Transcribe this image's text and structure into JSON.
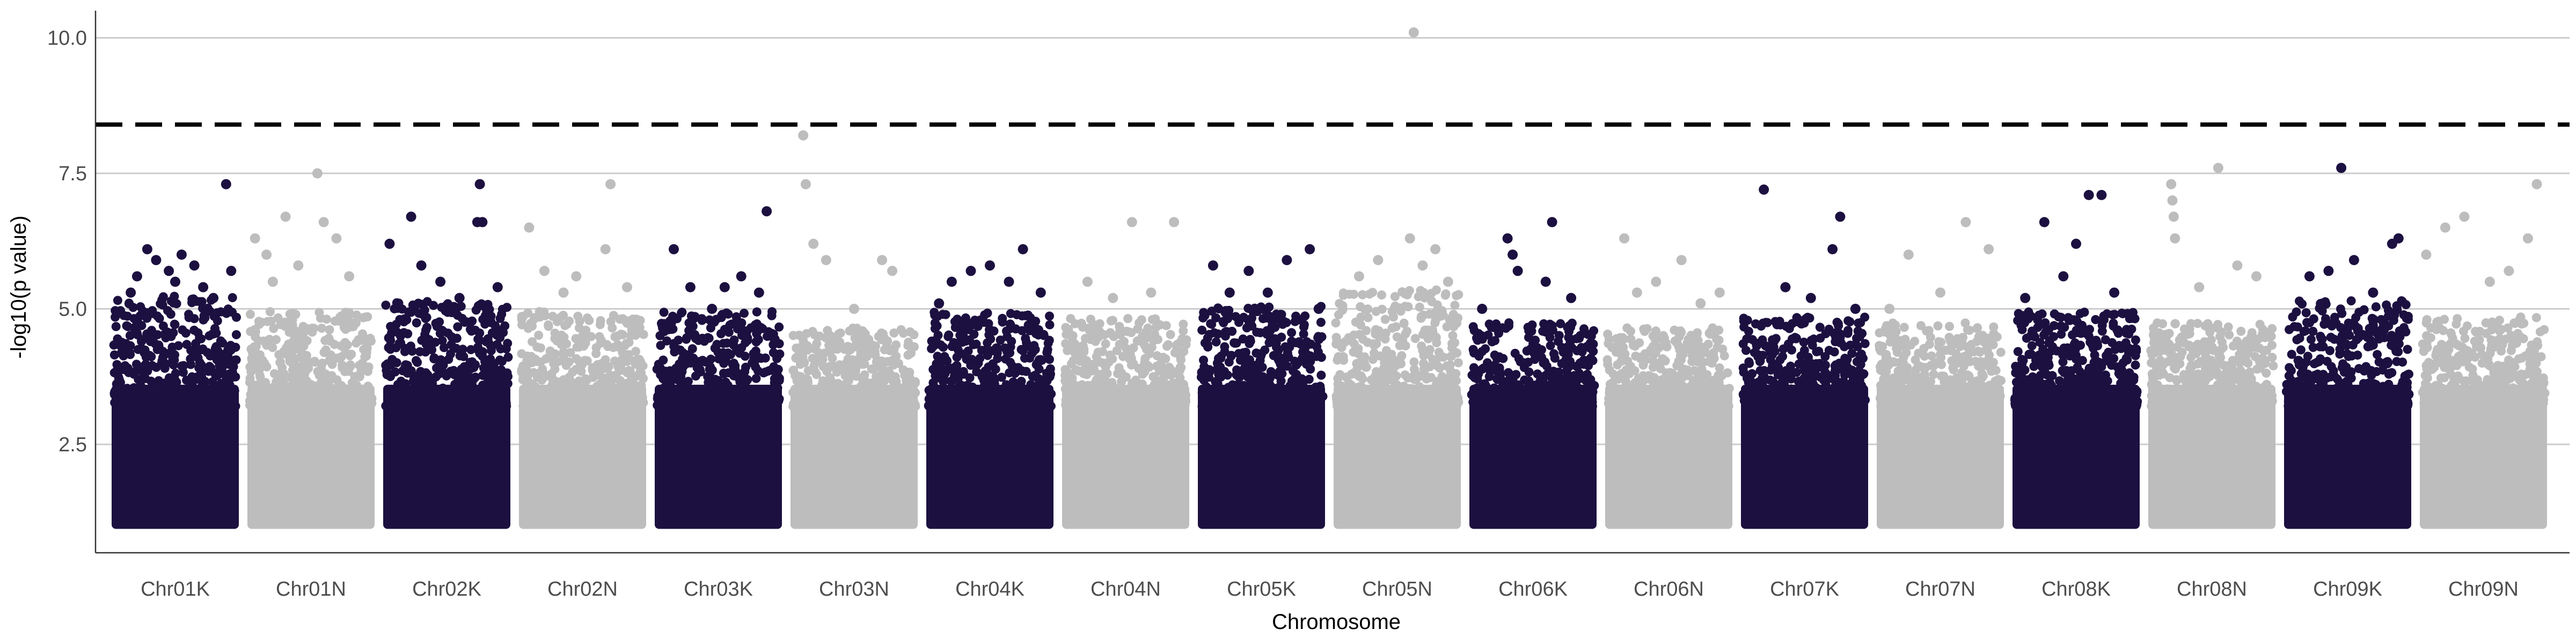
{
  "chart_data": {
    "type": "scatter",
    "title": "",
    "xlabel": "Chromosome",
    "ylabel": "-log10(p value)",
    "categories": [
      "Chr01K",
      "Chr01N",
      "Chr02K",
      "Chr02N",
      "Chr03K",
      "Chr03N",
      "Chr04K",
      "Chr04N",
      "Chr05K",
      "Chr05N",
      "Chr06K",
      "Chr06N",
      "Chr07K",
      "Chr07N",
      "Chr08K",
      "Chr08N",
      "Chr09K",
      "Chr09N"
    ],
    "ylim": [
      0.5,
      10.5
    ],
    "y_ticks": [
      2.5,
      5.0,
      7.5,
      10.0
    ],
    "y_tick_labels": [
      "2.5",
      "5.0",
      "7.5",
      "10.0"
    ],
    "threshold": 8.4,
    "grid": "horizontal-major",
    "colors": {
      "dark": "#1c1040",
      "light": "#bdbdbd",
      "threshold": "#000000",
      "grid": "#cccccc"
    },
    "series": [
      {
        "chromosome": "Chr01K",
        "color": "dark",
        "typical_max": 4.9,
        "top_points": [
          [
            0.2,
            5.6
          ],
          [
            0.28,
            6.1
          ],
          [
            0.35,
            5.9
          ],
          [
            0.45,
            5.7
          ],
          [
            0.55,
            6.0
          ],
          [
            0.65,
            5.8
          ],
          [
            0.72,
            5.4
          ],
          [
            0.9,
            7.3
          ],
          [
            0.94,
            5.7
          ],
          [
            0.15,
            5.3
          ],
          [
            0.5,
            5.5
          ],
          [
            0.8,
            5.2
          ]
        ]
      },
      {
        "chromosome": "Chr01N",
        "color": "light",
        "typical_max": 4.6,
        "top_points": [
          [
            0.06,
            6.3
          ],
          [
            0.15,
            6.0
          ],
          [
            0.3,
            6.7
          ],
          [
            0.55,
            7.5
          ],
          [
            0.6,
            6.6
          ],
          [
            0.7,
            6.3
          ],
          [
            0.4,
            5.8
          ],
          [
            0.8,
            5.6
          ],
          [
            0.2,
            5.5
          ]
        ]
      },
      {
        "chromosome": "Chr02K",
        "color": "dark",
        "typical_max": 4.8,
        "top_points": [
          [
            0.05,
            6.2
          ],
          [
            0.22,
            6.7
          ],
          [
            0.3,
            5.8
          ],
          [
            0.45,
            5.5
          ],
          [
            0.74,
            6.6
          ],
          [
            0.76,
            7.3
          ],
          [
            0.78,
            6.6
          ],
          [
            0.9,
            5.4
          ],
          [
            0.6,
            5.2
          ]
        ]
      },
      {
        "chromosome": "Chr02N",
        "color": "light",
        "typical_max": 4.6,
        "top_points": [
          [
            0.08,
            6.5
          ],
          [
            0.2,
            5.7
          ],
          [
            0.45,
            5.6
          ],
          [
            0.68,
            6.1
          ],
          [
            0.72,
            7.3
          ],
          [
            0.85,
            5.4
          ],
          [
            0.35,
            5.3
          ]
        ]
      },
      {
        "chromosome": "Chr03K",
        "color": "dark",
        "typical_max": 4.6,
        "top_points": [
          [
            0.15,
            6.1
          ],
          [
            0.28,
            5.4
          ],
          [
            0.55,
            5.4
          ],
          [
            0.68,
            5.6
          ],
          [
            0.82,
            5.3
          ],
          [
            0.88,
            6.8
          ],
          [
            0.45,
            5.0
          ]
        ]
      },
      {
        "chromosome": "Chr03N",
        "color": "light",
        "typical_max": 4.3,
        "top_points": [
          [
            0.1,
            8.2
          ],
          [
            0.12,
            7.3
          ],
          [
            0.18,
            6.2
          ],
          [
            0.28,
            5.9
          ],
          [
            0.72,
            5.9
          ],
          [
            0.8,
            5.7
          ],
          [
            0.5,
            5.0
          ]
        ]
      },
      {
        "chromosome": "Chr04K",
        "color": "dark",
        "typical_max": 4.6,
        "top_points": [
          [
            0.2,
            5.5
          ],
          [
            0.35,
            5.7
          ],
          [
            0.5,
            5.8
          ],
          [
            0.65,
            5.5
          ],
          [
            0.76,
            6.1
          ],
          [
            0.9,
            5.3
          ],
          [
            0.1,
            5.1
          ]
        ]
      },
      {
        "chromosome": "Chr04N",
        "color": "light",
        "typical_max": 4.5,
        "top_points": [
          [
            0.2,
            5.5
          ],
          [
            0.55,
            6.6
          ],
          [
            0.88,
            6.6
          ],
          [
            0.4,
            5.2
          ],
          [
            0.7,
            5.3
          ]
        ]
      },
      {
        "chromosome": "Chr05K",
        "color": "dark",
        "typical_max": 4.7,
        "top_points": [
          [
            0.12,
            5.8
          ],
          [
            0.4,
            5.7
          ],
          [
            0.55,
            5.3
          ],
          [
            0.7,
            5.9
          ],
          [
            0.88,
            6.1
          ],
          [
            0.25,
            5.3
          ],
          [
            0.95,
            5.0
          ]
        ]
      },
      {
        "chromosome": "Chr05N",
        "color": "light",
        "typical_max": 5.0,
        "top_points": [
          [
            0.35,
            5.9
          ],
          [
            0.6,
            6.3
          ],
          [
            0.63,
            10.1
          ],
          [
            0.7,
            5.8
          ],
          [
            0.8,
            6.1
          ],
          [
            0.2,
            5.6
          ],
          [
            0.9,
            5.5
          ]
        ]
      },
      {
        "chromosome": "Chr06K",
        "color": "dark",
        "typical_max": 4.4,
        "top_points": [
          [
            0.3,
            6.3
          ],
          [
            0.34,
            6.0
          ],
          [
            0.38,
            5.7
          ],
          [
            0.6,
            5.5
          ],
          [
            0.65,
            6.6
          ],
          [
            0.8,
            5.2
          ],
          [
            0.1,
            5.0
          ]
        ]
      },
      {
        "chromosome": "Chr06N",
        "color": "light",
        "typical_max": 4.3,
        "top_points": [
          [
            0.15,
            6.3
          ],
          [
            0.25,
            5.3
          ],
          [
            0.4,
            5.5
          ],
          [
            0.6,
            5.9
          ],
          [
            0.9,
            5.3
          ],
          [
            0.75,
            5.1
          ]
        ]
      },
      {
        "chromosome": "Chr07K",
        "color": "dark",
        "typical_max": 4.5,
        "top_points": [
          [
            0.18,
            7.2
          ],
          [
            0.35,
            5.4
          ],
          [
            0.72,
            6.1
          ],
          [
            0.78,
            6.7
          ],
          [
            0.55,
            5.2
          ],
          [
            0.9,
            5.0
          ]
        ]
      },
      {
        "chromosome": "Chr07N",
        "color": "light",
        "typical_max": 4.4,
        "top_points": [
          [
            0.25,
            6.0
          ],
          [
            0.7,
            6.6
          ],
          [
            0.88,
            6.1
          ],
          [
            0.5,
            5.3
          ],
          [
            0.1,
            5.0
          ]
        ]
      },
      {
        "chromosome": "Chr08K",
        "color": "dark",
        "typical_max": 4.6,
        "top_points": [
          [
            0.25,
            6.6
          ],
          [
            0.6,
            7.1
          ],
          [
            0.7,
            7.1
          ],
          [
            0.5,
            6.2
          ],
          [
            0.4,
            5.6
          ],
          [
            0.8,
            5.3
          ],
          [
            0.1,
            5.2
          ]
        ]
      },
      {
        "chromosome": "Chr08N",
        "color": "light",
        "typical_max": 4.4,
        "top_points": [
          [
            0.18,
            7.3
          ],
          [
            0.19,
            7.0
          ],
          [
            0.2,
            6.7
          ],
          [
            0.21,
            6.3
          ],
          [
            0.55,
            7.6
          ],
          [
            0.7,
            5.8
          ],
          [
            0.85,
            5.6
          ],
          [
            0.4,
            5.4
          ]
        ]
      },
      {
        "chromosome": "Chr09K",
        "color": "dark",
        "typical_max": 4.8,
        "top_points": [
          [
            0.2,
            5.6
          ],
          [
            0.35,
            5.7
          ],
          [
            0.45,
            7.6
          ],
          [
            0.55,
            5.9
          ],
          [
            0.85,
            6.2
          ],
          [
            0.9,
            6.3
          ],
          [
            0.7,
            5.3
          ]
        ]
      },
      {
        "chromosome": "Chr09N",
        "color": "light",
        "typical_max": 4.5,
        "top_points": [
          [
            0.05,
            6.0
          ],
          [
            0.2,
            6.5
          ],
          [
            0.35,
            6.7
          ],
          [
            0.85,
            6.3
          ],
          [
            0.92,
            7.3
          ],
          [
            0.55,
            5.5
          ],
          [
            0.7,
            5.7
          ]
        ]
      }
    ]
  }
}
